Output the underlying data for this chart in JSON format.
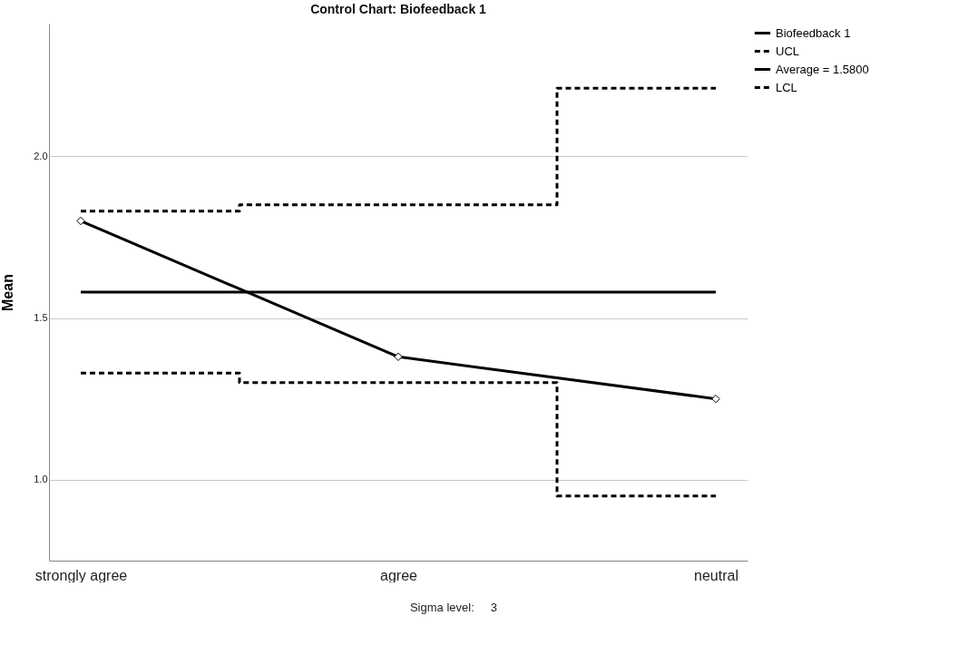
{
  "chart_data": {
    "type": "line",
    "title": "Control Chart: Biofeedback 1",
    "ylabel": "Mean",
    "categories": [
      "strongly agree",
      "agree",
      "neutral"
    ],
    "series": [
      {
        "name": "Biofeedback 1",
        "color": "#000000",
        "line_style": "solid",
        "marker": "diamond",
        "values": [
          1.8,
          1.38,
          1.25
        ]
      },
      {
        "name": "UCL",
        "type": "step",
        "color": "#000000",
        "line_style": "dashed",
        "values": [
          1.83,
          1.85,
          2.21
        ]
      },
      {
        "name": "Average = 1.5800",
        "color": "#000000",
        "line_style": "solid",
        "values": [
          1.58,
          1.58,
          1.58
        ]
      },
      {
        "name": "LCL",
        "type": "step",
        "color": "#000000",
        "line_style": "dashed",
        "values": [
          1.33,
          1.3,
          0.95
        ]
      }
    ],
    "ylim": [
      0.75,
      2.41
    ],
    "yticks": [
      {
        "value": 1.0,
        "label": "1.0"
      },
      {
        "value": 1.5,
        "label": "1.5"
      },
      {
        "value": 2.0,
        "label": "2.0"
      }
    ],
    "grid": "y",
    "legend": "top right",
    "annotations": [
      "Sigma level:     3"
    ]
  }
}
